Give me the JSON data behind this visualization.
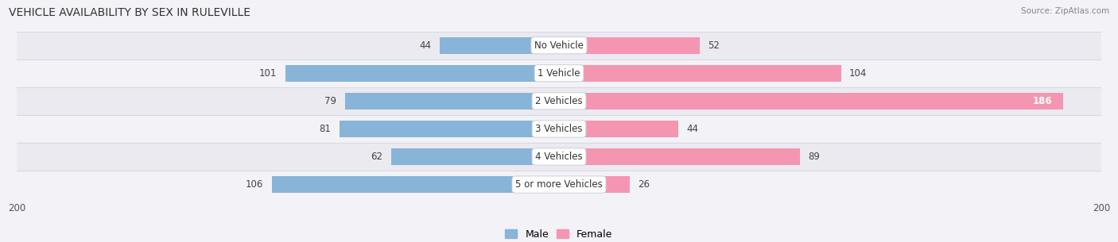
{
  "title": "VEHICLE AVAILABILITY BY SEX IN RULEVILLE",
  "source": "Source: ZipAtlas.com",
  "categories": [
    "No Vehicle",
    "1 Vehicle",
    "2 Vehicles",
    "3 Vehicles",
    "4 Vehicles",
    "5 or more Vehicles"
  ],
  "male_values": [
    44,
    101,
    79,
    81,
    62,
    106
  ],
  "female_values": [
    52,
    104,
    186,
    44,
    89,
    26
  ],
  "male_color": "#88b4d8",
  "female_color": "#f495b2",
  "axis_max": 200,
  "background_color": "#f2f2f7",
  "row_bg_even": "#eaeaf0",
  "row_bg_odd": "#f2f2f7",
  "row_separator": "#d8d8e0",
  "title_fontsize": 10,
  "label_fontsize": 8.5,
  "tick_fontsize": 8.5,
  "legend_fontsize": 9
}
